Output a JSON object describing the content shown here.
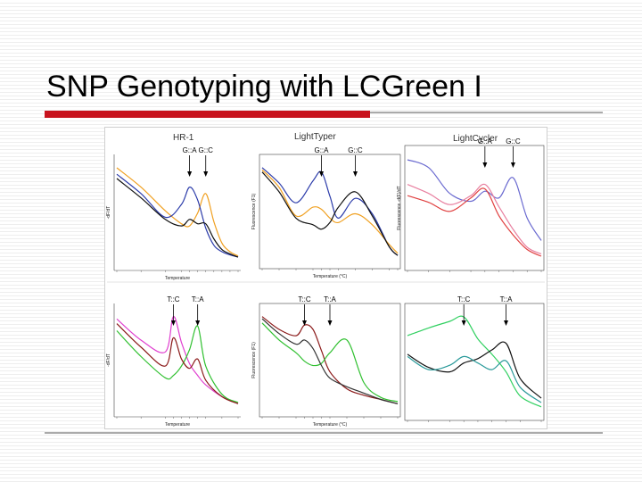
{
  "slide": {
    "title": "SNP Genotyping with LCGreen I",
    "colors": {
      "title_rule": "#c8141e",
      "rule": "#aaaaaa",
      "background_stripe": "#eeeeee"
    }
  },
  "figure": {
    "column_titles": [
      "HR-1",
      "LightTyper",
      "LightCycler"
    ]
  },
  "chart_data": [
    {
      "type": "line",
      "panel": "HR-1 G::A / G::C",
      "title": "HR-1",
      "xlabel": "Temperature",
      "ylabel": "-dF/dT",
      "x": [
        50,
        56,
        62,
        66,
        68,
        70,
        72,
        74,
        76,
        78,
        80
      ],
      "series": [
        {
          "color": "#f0a020",
          "values": [
            0.9,
            0.72,
            0.5,
            0.38,
            0.36,
            0.48,
            0.66,
            0.4,
            0.2,
            0.12,
            0.08
          ]
        },
        {
          "color": "#2c3caa",
          "values": [
            0.84,
            0.66,
            0.44,
            0.56,
            0.72,
            0.6,
            0.34,
            0.18,
            0.12,
            0.09,
            0.07
          ]
        },
        {
          "color": "#111111",
          "values": [
            0.8,
            0.62,
            0.42,
            0.36,
            0.42,
            0.38,
            0.38,
            0.24,
            0.14,
            0.1,
            0.07
          ]
        }
      ],
      "annotations": [
        {
          "text": "G::A",
          "x": 68
        },
        {
          "text": "G::C",
          "x": 72
        }
      ]
    },
    {
      "type": "line",
      "panel": "LightTyper G::A / G::C",
      "xlabel": "Temperature (°C)",
      "ylabel": "Fluorescence (F1)",
      "x": [
        54,
        58,
        62,
        66,
        68,
        70,
        72,
        76,
        80,
        84,
        86
      ],
      "series": [
        {
          "color": "#2c3caa",
          "values": [
            0.92,
            0.78,
            0.6,
            0.8,
            0.88,
            0.66,
            0.46,
            0.64,
            0.5,
            0.2,
            0.12
          ]
        },
        {
          "color": "#f0a020",
          "values": [
            0.9,
            0.74,
            0.48,
            0.56,
            0.54,
            0.46,
            0.42,
            0.5,
            0.4,
            0.22,
            0.14
          ]
        },
        {
          "color": "#111111",
          "values": [
            0.88,
            0.7,
            0.46,
            0.4,
            0.36,
            0.42,
            0.56,
            0.7,
            0.48,
            0.2,
            0.12
          ]
        }
      ],
      "annotations": [
        {
          "text": "G::A",
          "x": 68
        },
        {
          "text": "G::C",
          "x": 76
        }
      ]
    },
    {
      "type": "line",
      "panel": "LightCycler G::A / G::C",
      "ylabel": "Fluorescence -d(F)/dT",
      "x": [
        55,
        58,
        61,
        64,
        66,
        68,
        70,
        72,
        74
      ],
      "series": [
        {
          "color": "#6a6ad0",
          "values": [
            0.112,
            0.105,
            0.082,
            0.075,
            0.084,
            0.078,
            0.096,
            0.06,
            0.04
          ]
        },
        {
          "color": "#e04040",
          "values": [
            0.08,
            0.074,
            0.066,
            0.078,
            0.086,
            0.062,
            0.045,
            0.032,
            0.026
          ]
        },
        {
          "color": "#e880a0",
          "values": [
            0.09,
            0.082,
            0.072,
            0.08,
            0.09,
            0.07,
            0.05,
            0.034,
            0.028
          ]
        }
      ],
      "annotations": [
        {
          "text": "G::A",
          "x": 66
        },
        {
          "text": "G::C",
          "x": 70
        }
      ]
    },
    {
      "type": "line",
      "panel": "HR-1 T::C / T::A",
      "xlabel": "Temperature",
      "ylabel": "-dF/dT",
      "x": [
        50,
        56,
        62,
        64,
        66,
        68,
        70,
        72,
        76,
        80
      ],
      "series": [
        {
          "color": "#e040d0",
          "values": [
            0.8,
            0.62,
            0.52,
            0.82,
            0.6,
            0.42,
            0.32,
            0.24,
            0.14,
            0.08
          ]
        },
        {
          "color": "#30c030",
          "values": [
            0.7,
            0.48,
            0.3,
            0.32,
            0.4,
            0.54,
            0.74,
            0.4,
            0.16,
            0.09
          ]
        },
        {
          "color": "#8b1a1a",
          "values": [
            0.76,
            0.56,
            0.4,
            0.64,
            0.46,
            0.38,
            0.46,
            0.28,
            0.14,
            0.08
          ]
        }
      ],
      "annotations": [
        {
          "text": "T::C",
          "x": 64
        },
        {
          "text": "T::A",
          "x": 70
        }
      ]
    },
    {
      "type": "line",
      "panel": "LightTyper T::C / T::A",
      "xlabel": "Temperature (°C)",
      "ylabel": "Fluorescence (F1)",
      "x": [
        54,
        58,
        62,
        64,
        66,
        68,
        70,
        74,
        78,
        82,
        86
      ],
      "series": [
        {
          "color": "#8b1a1a",
          "values": [
            0.92,
            0.8,
            0.74,
            0.84,
            0.8,
            0.6,
            0.4,
            0.24,
            0.18,
            0.14,
            0.1
          ]
        },
        {
          "color": "#30c030",
          "values": [
            0.86,
            0.7,
            0.58,
            0.5,
            0.46,
            0.48,
            0.58,
            0.7,
            0.3,
            0.16,
            0.12
          ]
        },
        {
          "color": "#333333",
          "values": [
            0.9,
            0.76,
            0.66,
            0.7,
            0.62,
            0.46,
            0.34,
            0.26,
            0.2,
            0.14,
            0.1
          ]
        }
      ],
      "annotations": [
        {
          "text": "T::C",
          "x": 64
        },
        {
          "text": "T::A",
          "x": 70
        }
      ]
    },
    {
      "type": "line",
      "panel": "LightCycler T::C / T::A",
      "x": [
        55,
        58,
        61,
        63,
        65,
        67,
        69,
        71,
        74
      ],
      "series": [
        {
          "color": "#30d060",
          "values": [
            0.105,
            0.112,
            0.118,
            0.122,
            0.102,
            0.088,
            0.072,
            0.05,
            0.04
          ]
        },
        {
          "color": "#111111",
          "values": [
            0.088,
            0.076,
            0.072,
            0.08,
            0.084,
            0.092,
            0.098,
            0.066,
            0.048
          ]
        },
        {
          "color": "#2a9a9a",
          "values": [
            0.086,
            0.074,
            0.078,
            0.086,
            0.08,
            0.074,
            0.082,
            0.058,
            0.044
          ]
        }
      ],
      "annotations": [
        {
          "text": "T::C",
          "x": 63
        },
        {
          "text": "T::A",
          "x": 69
        }
      ]
    }
  ]
}
